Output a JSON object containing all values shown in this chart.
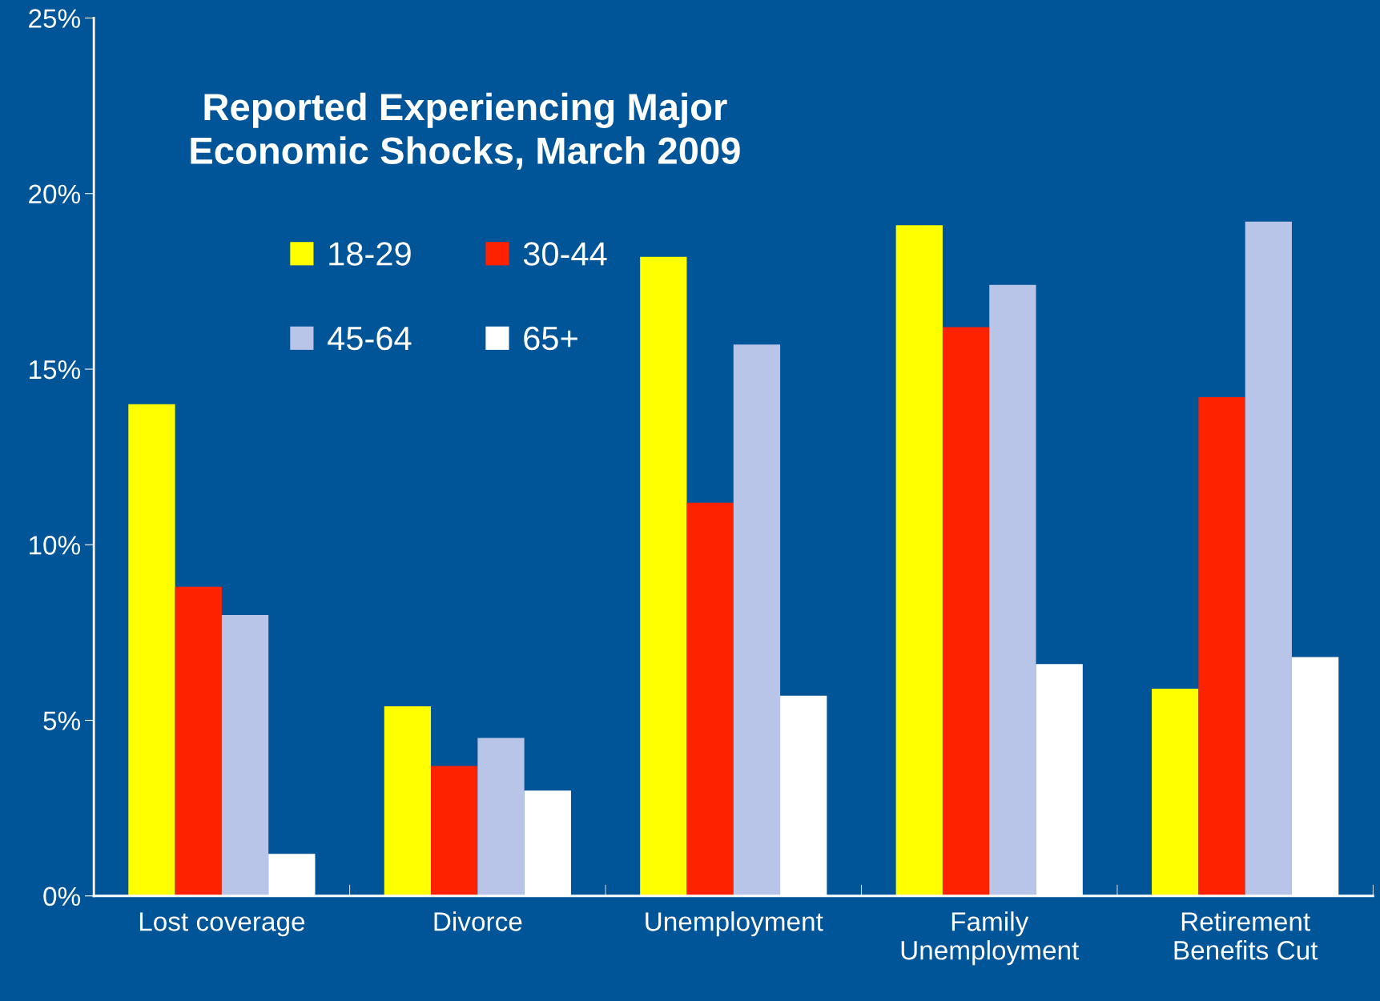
{
  "chart_data": {
    "type": "bar",
    "title": "Reported Experiencing Major\nEconomic Shocks, March 2009",
    "categories": [
      "Lost coverage",
      "Divorce",
      "Unemployment",
      "Family\nUnemployment",
      "Retirement\nBenefits Cut"
    ],
    "series": [
      {
        "name": "18-29",
        "color": "#ffff00",
        "values": [
          14.0,
          5.4,
          18.2,
          19.1,
          5.9
        ]
      },
      {
        "name": "30-44",
        "color": "#ff2200",
        "values": [
          8.8,
          3.7,
          11.2,
          16.2,
          14.2
        ]
      },
      {
        "name": "45-64",
        "color": "#b8c4e8",
        "values": [
          8.0,
          4.5,
          15.7,
          17.4,
          19.2
        ]
      },
      {
        "name": "65+",
        "color": "#ffffff",
        "values": [
          1.2,
          3.0,
          5.7,
          6.6,
          6.8
        ]
      }
    ],
    "ylim": [
      0,
      25
    ],
    "yticks": [
      {
        "value": 0,
        "label": "0%"
      },
      {
        "value": 5,
        "label": "5%"
      },
      {
        "value": 10,
        "label": "10%"
      },
      {
        "value": 15,
        "label": "15%"
      },
      {
        "value": 20,
        "label": "20%"
      },
      {
        "value": 25,
        "label": "25%"
      }
    ],
    "grid": false,
    "legend": "top left"
  }
}
